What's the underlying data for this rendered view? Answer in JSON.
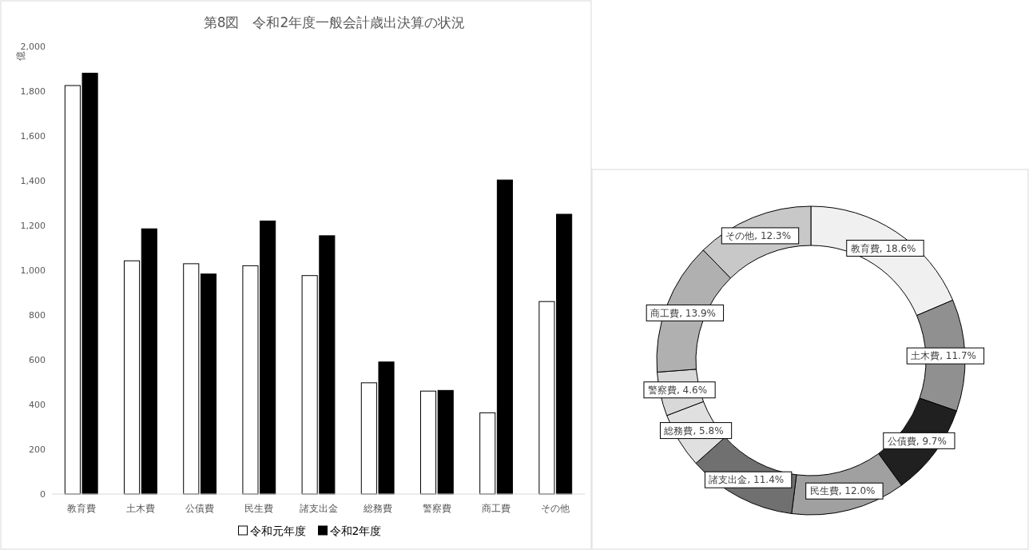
{
  "chart_data": [
    {
      "type": "bar",
      "title": "第8図　令和2年度一般会計歳出決算の状況",
      "ylabel": "億",
      "categories": [
        "教育費",
        "土木費",
        "公債費",
        "民生費",
        "諸支出金",
        "総務費",
        "警察費",
        "商工費",
        "その他"
      ],
      "series": [
        {
          "name": "令和元年度",
          "color": "#ffffff",
          "values": [
            1825,
            1042,
            1029,
            1020,
            976,
            497,
            460,
            363,
            860
          ]
        },
        {
          "name": "令和2年度",
          "color": "#000000",
          "values": [
            1880,
            1185,
            983,
            1220,
            1154,
            590,
            463,
            1403,
            1250
          ]
        }
      ],
      "ylim": [
        0,
        2000
      ],
      "yticks": [
        {
          "value": 0,
          "label": "0"
        },
        {
          "value": 200,
          "label": "200"
        },
        {
          "value": 400,
          "label": "400"
        },
        {
          "value": 600,
          "label": "600"
        },
        {
          "value": 800,
          "label": "800"
        },
        {
          "value": 1000,
          "label": "1,000"
        },
        {
          "value": 1200,
          "label": "1,200"
        },
        {
          "value": 1400,
          "label": "1,400"
        },
        {
          "value": 1600,
          "label": "1,600"
        },
        {
          "value": 1800,
          "label": "1,800"
        },
        {
          "value": 2000,
          "label": "2,000"
        }
      ],
      "grid": false,
      "legend": "bottom"
    },
    {
      "type": "donut",
      "categories": [
        "教育費",
        "土木費",
        "公債費",
        "民生費",
        "諸支出金",
        "総務費",
        "警察費",
        "商工費",
        "その他"
      ],
      "values": [
        18.6,
        11.7,
        9.7,
        12.0,
        11.4,
        5.8,
        4.6,
        13.9,
        12.3
      ],
      "colors": [
        "#f0f0f0",
        "#909090",
        "#202020",
        "#a0a0a0",
        "#707070",
        "#e0e0e0",
        "#d8d8d8",
        "#b0b0b0",
        "#c8c8c8"
      ],
      "value_labels": [
        ", 18.6%",
        ", 11.7%",
        ", 9.7%",
        ", 12.0%",
        ", 11.4%",
        ", 5.8%",
        ", 4.6%",
        ", 13.9%",
        ", 12.3%"
      ]
    }
  ]
}
